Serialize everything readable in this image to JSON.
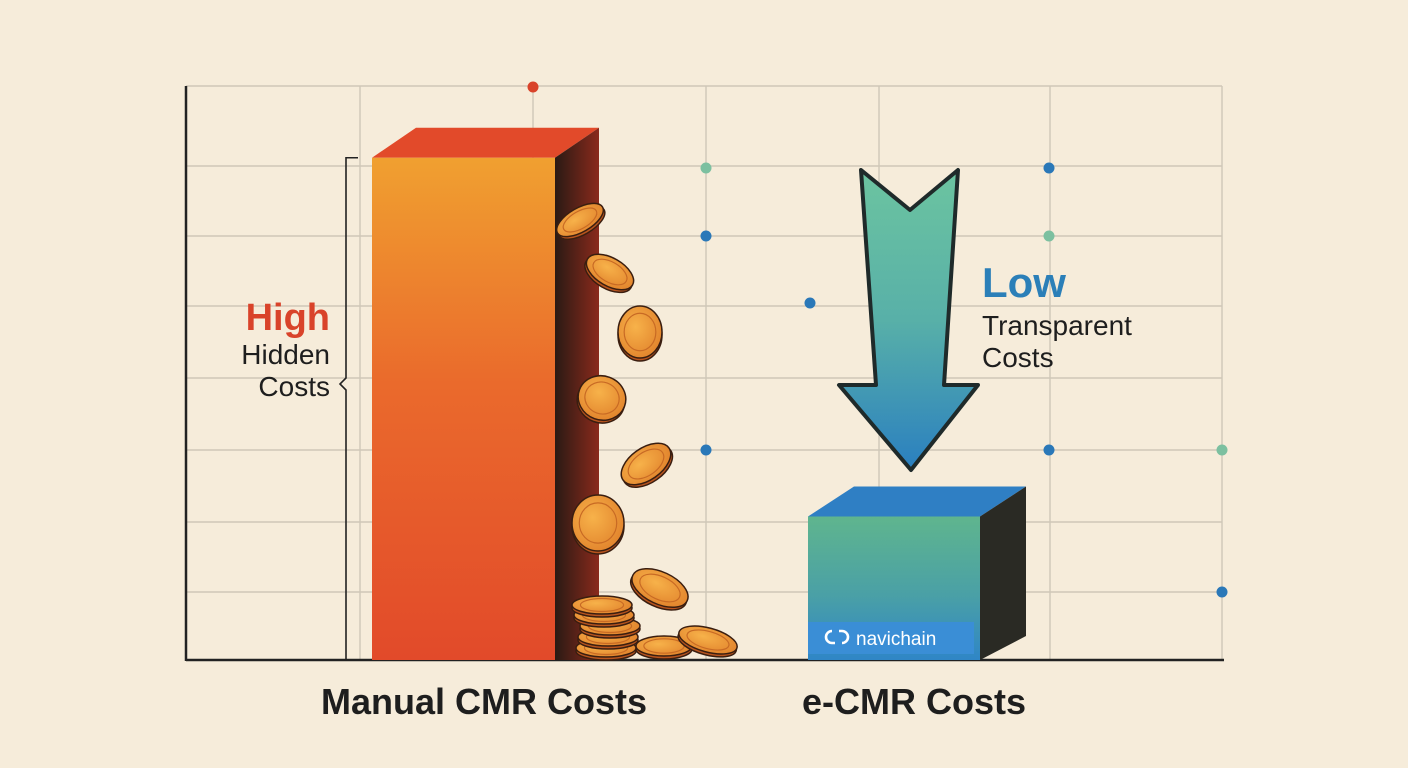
{
  "chart_data": {
    "type": "bar",
    "title": "",
    "xlabel": "",
    "ylabel": "",
    "categories": [
      "Manual CMR Costs",
      "e-CMR Costs"
    ],
    "values": [
      7,
      2
    ],
    "ylim": [
      0,
      8
    ],
    "grid": true,
    "colors": {
      "manual_bar": "#e8502c",
      "manual_bar_top": "#f0a030",
      "ecmr_bar_top": "#5fb58e",
      "ecmr_bar_bottom": "#2f86c6",
      "coin": "#f0a030",
      "arrow_top": "#6cc4a0",
      "arrow_bottom": "#2a7fc0",
      "high_text": "#d9432a",
      "low_text": "#2b7fb8",
      "dot_red": "#d9432a",
      "dot_blue": "#2a78b8",
      "dot_green": "#7cc0a0"
    },
    "annotations": {
      "high_title": "High",
      "high_line1": "Hidden",
      "high_line2": "Costs",
      "low_title": "Low",
      "low_line1": "Transparent",
      "low_line2": "Costs"
    },
    "logo_text": "navichain"
  }
}
